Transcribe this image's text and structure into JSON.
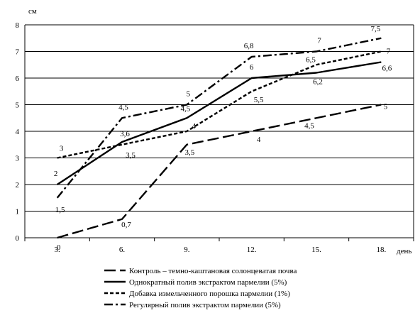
{
  "chart_data": {
    "type": "line",
    "title": "",
    "xlabel": "день",
    "ylabel": "см",
    "categories": [
      "3.",
      "6.",
      "9.",
      "12.",
      "15.",
      "18."
    ],
    "ylim": [
      0,
      8
    ],
    "yticks": [
      "0",
      "1",
      "2",
      "3",
      "4",
      "5",
      "6",
      "7",
      "8"
    ],
    "grid": "horizontal",
    "legend_position": "bottom",
    "series": [
      {
        "name": "Контроль – темно-каштановая солонцеватая почва",
        "style": "long-dash",
        "values": [
          0,
          0.7,
          3.5,
          4,
          4.5,
          5
        ],
        "labels": [
          "0",
          "0,7",
          "3,5",
          "4",
          "4,5",
          "5"
        ]
      },
      {
        "name": "Однократный полив экстрактом пармелии (5%)",
        "style": "solid",
        "values": [
          2,
          3.6,
          4.5,
          6,
          6.2,
          6.6
        ],
        "labels": [
          "2",
          "3,6",
          "4,5",
          "6",
          "6,2",
          "6,6"
        ]
      },
      {
        "name": "Добавка измельченного порошка пармелии (1%)",
        "style": "short-dash",
        "values": [
          3,
          3.5,
          4,
          5.5,
          6.5,
          7
        ],
        "labels": [
          "3",
          "3,5",
          "4",
          "5,5",
          "6,5",
          "7"
        ]
      },
      {
        "name": "Регулярный полив экстрактом пармелии (5%)",
        "style": "dash-dot",
        "values": [
          1.5,
          4.5,
          5,
          6.8,
          7,
          7.5
        ],
        "labels": [
          "1,5",
          "4,5",
          "5",
          "6,8",
          "7",
          "7,5"
        ]
      }
    ]
  }
}
